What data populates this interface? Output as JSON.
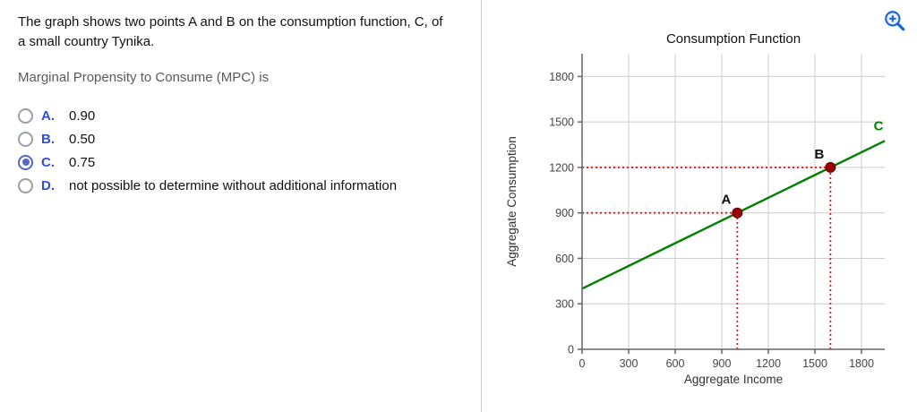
{
  "question": {
    "prompt": "The graph shows two points A and B on the consumption function, C, of a small country Tynika.",
    "subprompt": "Marginal Propensity to Consume (MPC) is",
    "options": [
      {
        "letter": "A.",
        "text": "0.90",
        "selected": false
      },
      {
        "letter": "B.",
        "text": "0.50",
        "selected": false
      },
      {
        "letter": "C.",
        "text": "0.75",
        "selected": true
      },
      {
        "letter": "D.",
        "text": "not possible to determine without additional information",
        "selected": false
      }
    ]
  },
  "chart_data": {
    "type": "line",
    "title": "Consumption Function",
    "xlabel": "Aggregate Income",
    "ylabel": "Aggregate Consumption",
    "xlim": [
      0,
      1950
    ],
    "ylim": [
      0,
      1950
    ],
    "xticks": [
      0,
      300,
      600,
      900,
      1200,
      1500,
      1800
    ],
    "yticks": [
      0,
      300,
      600,
      900,
      1200,
      1500,
      1800
    ],
    "grid": true,
    "legend": "none",
    "series": [
      {
        "name": "C",
        "color": "#008000",
        "points": [
          [
            0,
            400
          ],
          [
            1950,
            1375
          ]
        ]
      }
    ],
    "markers": [
      {
        "label": "A",
        "x": 1000,
        "y": 900
      },
      {
        "label": "B",
        "x": 1600,
        "y": 1200
      }
    ],
    "colors": {
      "grid": "#cccccc",
      "axis": "#666666",
      "tick_text": "#444444",
      "guide": "#ee1111",
      "point_fill": "#990000",
      "point_stroke": "#660000",
      "title_text": "#111111",
      "axis_label_text": "#333333",
      "marker_label_text": "#111111"
    }
  },
  "icons": {
    "zoom": "zoom-in-icon",
    "zoom_color": "#1a66d6"
  }
}
